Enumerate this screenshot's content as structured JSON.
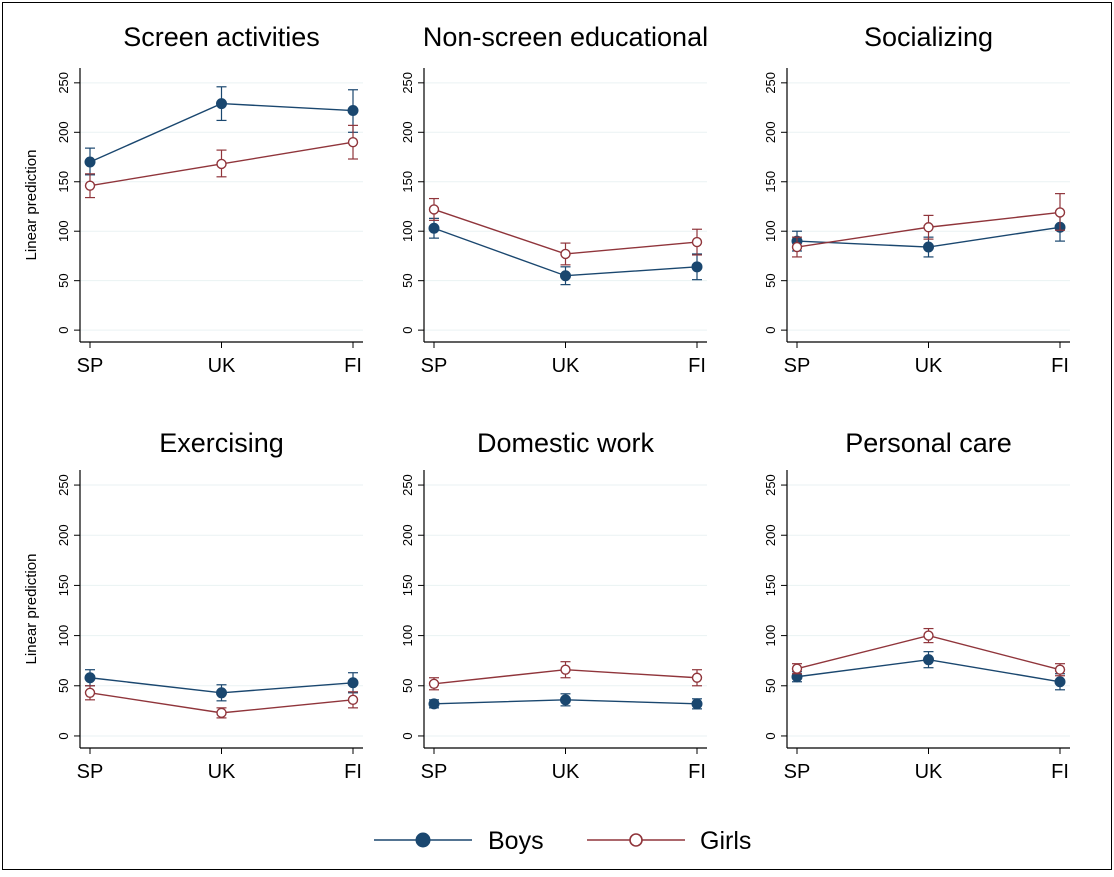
{
  "chart_data": {
    "type": "line",
    "ylabel": "Linear prediction",
    "yticks": [
      0,
      50,
      100,
      150,
      200,
      250
    ],
    "ylim": [
      -12,
      265
    ],
    "categories": [
      "SP",
      "UK",
      "FI"
    ],
    "grid": true,
    "legend_position": "bottom",
    "series_styles": [
      {
        "name": "Boys",
        "color": "#1a476f",
        "marker": "filled-circle"
      },
      {
        "name": "Girls",
        "color": "#90353b",
        "marker": "hollow-circle"
      }
    ],
    "panels": [
      {
        "title": "Screen activities",
        "series": [
          {
            "name": "Boys",
            "values": [
              170,
              229,
              222
            ],
            "ci_low": [
              157,
              212,
              200
            ],
            "ci_high": [
              184,
              246,
              243
            ]
          },
          {
            "name": "Girls",
            "values": [
              146,
              168,
              190
            ],
            "ci_low": [
              134,
              155,
              173
            ],
            "ci_high": [
              158,
              182,
              207
            ]
          }
        ]
      },
      {
        "title": "Non-screen educational",
        "series": [
          {
            "name": "Boys",
            "values": [
              103,
              55,
              64
            ],
            "ci_low": [
              93,
              46,
              51
            ],
            "ci_high": [
              113,
              64,
              77
            ]
          },
          {
            "name": "Girls",
            "values": [
              122,
              77,
              89
            ],
            "ci_low": [
              111,
              66,
              76
            ],
            "ci_high": [
              133,
              88,
              102
            ]
          }
        ]
      },
      {
        "title": "Socializing",
        "series": [
          {
            "name": "Boys",
            "values": [
              90,
              84,
              104
            ],
            "ci_low": [
              80,
              74,
              90
            ],
            "ci_high": [
              100,
              94,
              118
            ]
          },
          {
            "name": "Girls",
            "values": [
              84,
              104,
              119
            ],
            "ci_low": [
              74,
              92,
              101
            ],
            "ci_high": [
              94,
              116,
              138
            ]
          }
        ]
      },
      {
        "title": "Exercising",
        "series": [
          {
            "name": "Boys",
            "values": [
              58,
              43,
              53
            ],
            "ci_low": [
              50,
              35,
              43
            ],
            "ci_high": [
              66,
              51,
              63
            ]
          },
          {
            "name": "Girls",
            "values": [
              43,
              23,
              36
            ],
            "ci_low": [
              36,
              18,
              28
            ],
            "ci_high": [
              50,
              28,
              44
            ]
          }
        ]
      },
      {
        "title": "Domestic work",
        "series": [
          {
            "name": "Boys",
            "values": [
              32,
              36,
              32
            ],
            "ci_low": [
              28,
              30,
              27
            ],
            "ci_high": [
              36,
              42,
              37
            ]
          },
          {
            "name": "Girls",
            "values": [
              52,
              66,
              58
            ],
            "ci_low": [
              46,
              58,
              50
            ],
            "ci_high": [
              58,
              74,
              66
            ]
          }
        ]
      },
      {
        "title": "Personal care",
        "series": [
          {
            "name": "Boys",
            "values": [
              59,
              76,
              54
            ],
            "ci_low": [
              54,
              68,
              46
            ],
            "ci_high": [
              64,
              84,
              62
            ]
          },
          {
            "name": "Girls",
            "values": [
              67,
              100,
              66
            ],
            "ci_low": [
              62,
              93,
              60
            ],
            "ci_high": [
              72,
              107,
              72
            ]
          }
        ]
      }
    ]
  }
}
